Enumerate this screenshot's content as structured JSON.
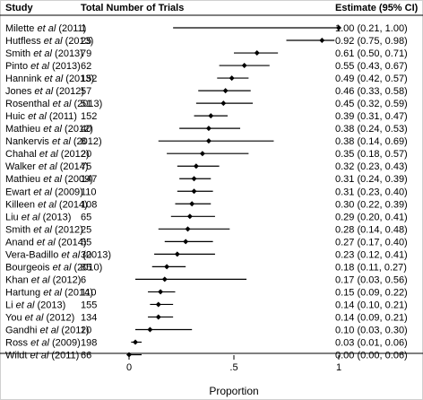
{
  "chart_data": {
    "type": "forest",
    "columns": {
      "study": "Study",
      "trials": "Total Number of Trials",
      "estimate": "Estimate (95% CI)"
    },
    "xlabel": "Proportion",
    "xlim": [
      0,
      1
    ],
    "xticks": [
      {
        "value": 0,
        "label": "0"
      },
      {
        "value": 0.5,
        "label": ".5"
      },
      {
        "value": 1,
        "label": "1"
      }
    ],
    "rows": [
      {
        "author": "Milette ",
        "etal": "et al",
        "year": " (2011)",
        "trials": "1",
        "est": 1.0,
        "lo": 0.21,
        "hi": 1.0,
        "ci_text": "1.00 (0.21, 1.00)"
      },
      {
        "author": "Hutfless ",
        "etal": "et al",
        "year": " (2013)",
        "trials": "25",
        "est": 0.92,
        "lo": 0.75,
        "hi": 0.98,
        "ci_text": "0.92 (0.75, 0.98)"
      },
      {
        "author": "Smith ",
        "etal": "et al",
        "year": " (2013)",
        "trials": "79",
        "est": 0.61,
        "lo": 0.5,
        "hi": 0.71,
        "ci_text": "0.61 (0.50, 0.71)"
      },
      {
        "author": "Pinto ",
        "etal": "et al",
        "year": " (2013)",
        "trials": "62",
        "est": 0.55,
        "lo": 0.43,
        "hi": 0.67,
        "ci_text": "0.55 (0.43, 0.67)"
      },
      {
        "author": "Hannink ",
        "etal": "et al",
        "year": " (2013)",
        "trials": "152",
        "est": 0.49,
        "lo": 0.42,
        "hi": 0.57,
        "ci_text": "0.49 (0.42, 0.57)"
      },
      {
        "author": "Jones ",
        "etal": "et al",
        "year": " (2012)",
        "trials": "57",
        "est": 0.46,
        "lo": 0.33,
        "hi": 0.58,
        "ci_text": "0.46 (0.33, 0.58)"
      },
      {
        "author": "Rosenthal ",
        "etal": "et al",
        "year": " (2013)",
        "trials": "51",
        "est": 0.45,
        "lo": 0.32,
        "hi": 0.59,
        "ci_text": "0.45 (0.32, 0.59)"
      },
      {
        "author": "Huic ",
        "etal": "et al",
        "year": " (2011)",
        "trials": "152",
        "est": 0.39,
        "lo": 0.31,
        "hi": 0.47,
        "ci_text": "0.39 (0.31, 0.47)"
      },
      {
        "author": "Mathieu ",
        "etal": "et al",
        "year": " (2012)",
        "trials": "40",
        "est": 0.38,
        "lo": 0.24,
        "hi": 0.53,
        "ci_text": "0.38 (0.24, 0.53)"
      },
      {
        "author": "Nankervis ",
        "etal": "et al",
        "year": " (2012)",
        "trials": "8",
        "est": 0.38,
        "lo": 0.14,
        "hi": 0.69,
        "ci_text": "0.38 (0.14, 0.69)"
      },
      {
        "author": "Chahal ",
        "etal": "et al",
        "year": " (2012)",
        "trials": "20",
        "est": 0.35,
        "lo": 0.18,
        "hi": 0.57,
        "ci_text": "0.35 (0.18, 0.57)"
      },
      {
        "author": "Walker ",
        "etal": "et al",
        "year": " (2014)",
        "trials": "75",
        "est": 0.32,
        "lo": 0.23,
        "hi": 0.43,
        "ci_text": "0.32 (0.23, 0.43)"
      },
      {
        "author": "Mathieu ",
        "etal": "et al",
        "year": " (2009)",
        "trials": "147",
        "est": 0.31,
        "lo": 0.24,
        "hi": 0.39,
        "ci_text": "0.31 (0.24, 0.39)"
      },
      {
        "author": "Ewart ",
        "etal": "et al",
        "year": " (2009)",
        "trials": "110",
        "est": 0.31,
        "lo": 0.23,
        "hi": 0.4,
        "ci_text": "0.31 (0.23, 0.40)"
      },
      {
        "author": "Killeen ",
        "etal": "et al",
        "year": " (2014)",
        "trials": "108",
        "est": 0.3,
        "lo": 0.22,
        "hi": 0.39,
        "ci_text": "0.30 (0.22, 0.39)"
      },
      {
        "author": "Liu ",
        "etal": "et al",
        "year": " (2013)",
        "trials": "65",
        "est": 0.29,
        "lo": 0.2,
        "hi": 0.41,
        "ci_text": "0.29 (0.20, 0.41)"
      },
      {
        "author": "Smith ",
        "etal": "et al",
        "year": " (2012)",
        "trials": "25",
        "est": 0.28,
        "lo": 0.14,
        "hi": 0.48,
        "ci_text": "0.28 (0.14, 0.48)"
      },
      {
        "author": "Anand ",
        "etal": "et al",
        "year": " (2014)",
        "trials": "55",
        "est": 0.27,
        "lo": 0.17,
        "hi": 0.4,
        "ci_text": "0.27 (0.17, 0.40)"
      },
      {
        "author": "Vera-Badillo ",
        "etal": "et al",
        "year": " (2013)",
        "trials": "30",
        "est": 0.23,
        "lo": 0.12,
        "hi": 0.41,
        "ci_text": "0.23 (0.12, 0.41)"
      },
      {
        "author": "Bourgeois ",
        "etal": "et al",
        "year": " (2010)",
        "trials": "85",
        "est": 0.18,
        "lo": 0.11,
        "hi": 0.27,
        "ci_text": "0.18 (0.11, 0.27)"
      },
      {
        "author": "Khan ",
        "etal": "et al",
        "year": " (2012)",
        "trials": "6",
        "est": 0.17,
        "lo": 0.03,
        "hi": 0.56,
        "ci_text": "0.17 (0.03, 0.56)"
      },
      {
        "author": "Hartung ",
        "etal": "et al",
        "year": " (2014)",
        "trials": "110",
        "est": 0.15,
        "lo": 0.09,
        "hi": 0.22,
        "ci_text": "0.15 (0.09, 0.22)"
      },
      {
        "author": "Li ",
        "etal": "et al",
        "year": " (2013)",
        "trials": "155",
        "est": 0.14,
        "lo": 0.1,
        "hi": 0.21,
        "ci_text": "0.14 (0.10, 0.21)"
      },
      {
        "author": "You ",
        "etal": "et al",
        "year": " (2012)",
        "trials": "134",
        "est": 0.14,
        "lo": 0.09,
        "hi": 0.21,
        "ci_text": "0.14 (0.09, 0.21)"
      },
      {
        "author": "Gandhi ",
        "etal": "et al",
        "year": " (2011)",
        "trials": "20",
        "est": 0.1,
        "lo": 0.03,
        "hi": 0.3,
        "ci_text": "0.10 (0.03, 0.30)"
      },
      {
        "author": "Ross ",
        "etal": "et al",
        "year": " (2009)",
        "trials": "198",
        "est": 0.03,
        "lo": 0.01,
        "hi": 0.06,
        "ci_text": "0.03 (0.01, 0.06)"
      },
      {
        "author": "Wildt ",
        "etal": "et al",
        "year": " (2011)",
        "trials": "66",
        "est": 0.0,
        "lo": 0.0,
        "hi": 0.06,
        "ci_text": "0.00 (0.00, 0.06)"
      }
    ],
    "grid": false,
    "colors": {
      "line": "#000000",
      "text": "#1a1a1a",
      "frame": "#d0d0d0"
    }
  }
}
